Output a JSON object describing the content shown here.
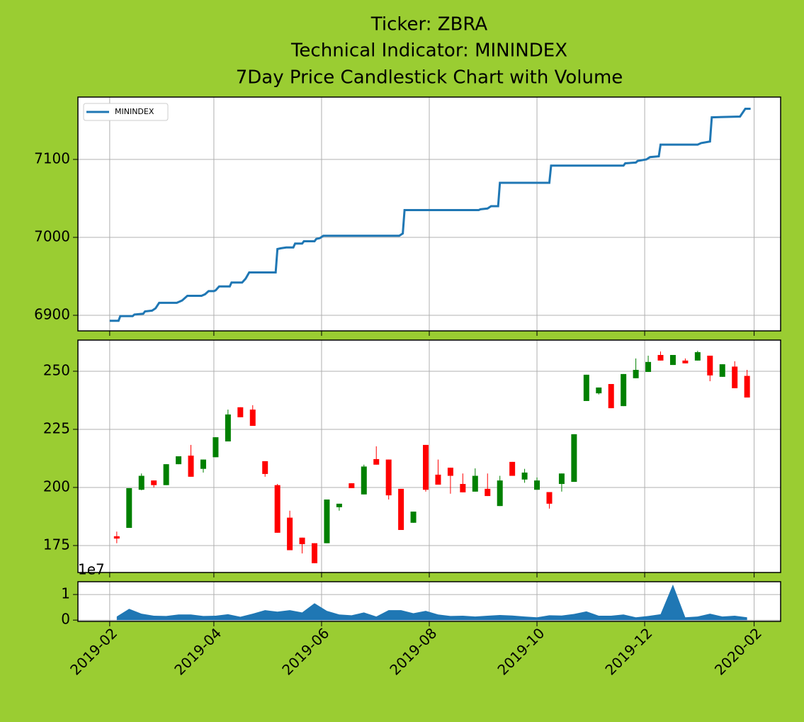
{
  "title": [
    "Ticker: ZBRA",
    "Technical Indicator: MININDEX",
    "7Day Price Candlestick Chart with Volume"
  ],
  "x_axis": {
    "xlim": [
      "2019-01-14",
      "2020-02-16"
    ],
    "xticks": [
      "2019-02",
      "2019-04",
      "2019-06",
      "2019-08",
      "2019-10",
      "2019-12",
      "2020-02"
    ]
  },
  "chart_data": [
    {
      "type": "line",
      "legend": "upper left",
      "grid": true,
      "x": [
        "2019-02-01",
        "2019-02-06",
        "2019-02-07",
        "2019-02-14",
        "2019-02-15",
        "2019-02-20",
        "2019-02-21",
        "2019-02-25",
        "2019-02-27",
        "2019-03-01",
        "2019-03-11",
        "2019-03-14",
        "2019-03-17",
        "2019-03-25",
        "2019-03-27",
        "2019-03-29",
        "2019-04-01",
        "2019-04-02",
        "2019-04-04",
        "2019-04-10",
        "2019-04-11",
        "2019-04-17",
        "2019-04-19",
        "2019-04-21",
        "2019-05-06",
        "2019-05-07",
        "2019-05-09",
        "2019-05-12",
        "2019-05-16",
        "2019-05-17",
        "2019-05-21",
        "2019-05-22",
        "2019-05-28",
        "2019-05-29",
        "2019-05-31",
        "2019-06-02",
        "2019-07-15",
        "2019-07-17",
        "2019-07-18",
        "2019-08-29",
        "2019-08-30",
        "2019-09-03",
        "2019-09-05",
        "2019-09-09",
        "2019-09-10",
        "2019-10-08",
        "2019-10-09",
        "2019-11-19",
        "2019-11-20",
        "2019-11-26",
        "2019-11-27",
        "2019-12-02",
        "2019-12-04",
        "2019-12-09",
        "2019-12-10",
        "2019-12-31",
        "2020-01-02",
        "2020-01-07",
        "2020-01-08",
        "2020-01-24",
        "2020-01-27",
        "2020-01-30"
      ],
      "series": [
        {
          "name": "MININDEX",
          "color": "#1f77b4",
          "values": [
            6893,
            6893,
            6899,
            6899,
            6901,
            6902,
            6905,
            6906,
            6909,
            6916,
            6916,
            6919,
            6925,
            6925,
            6927,
            6931,
            6931,
            6932,
            6937,
            6937,
            6942,
            6942,
            6947,
            6955,
            6955,
            6985,
            6986,
            6987,
            6987,
            6992,
            6992,
            6995,
            6995,
            6998,
            6999,
            7002,
            7002,
            7005,
            7035,
            7035,
            7036,
            7037,
            7040,
            7040,
            7070,
            7070,
            7092,
            7092,
            7095,
            7096,
            7098,
            7100,
            7103,
            7104,
            7119,
            7119,
            7121,
            7123,
            7154,
            7155,
            7165,
            7165
          ]
        }
      ],
      "ylim": [
        6880,
        7180
      ],
      "yticks": [
        6900,
        7000,
        7100
      ]
    },
    {
      "type": "candlestick",
      "grid": true,
      "up_color": "#008000",
      "down_color": "#ff0000",
      "x": [
        "2019-02-05",
        "2019-02-12",
        "2019-02-19",
        "2019-02-26",
        "2019-03-05",
        "2019-03-12",
        "2019-03-19",
        "2019-03-26",
        "2019-04-02",
        "2019-04-09",
        "2019-04-16",
        "2019-04-23",
        "2019-04-30",
        "2019-05-07",
        "2019-05-14",
        "2019-05-21",
        "2019-05-28",
        "2019-06-04",
        "2019-06-11",
        "2019-06-18",
        "2019-06-25",
        "2019-07-02",
        "2019-07-09",
        "2019-07-16",
        "2019-07-23",
        "2019-07-30",
        "2019-08-06",
        "2019-08-13",
        "2019-08-20",
        "2019-08-27",
        "2019-09-03",
        "2019-09-10",
        "2019-09-17",
        "2019-09-24",
        "2019-10-01",
        "2019-10-08",
        "2019-10-15",
        "2019-10-22",
        "2019-10-29",
        "2019-11-05",
        "2019-11-12",
        "2019-11-19",
        "2019-11-26",
        "2019-12-03",
        "2019-12-10",
        "2019-12-17",
        "2019-12-24",
        "2019-12-31",
        "2020-01-07",
        "2020-01-14",
        "2020-01-21",
        "2020-01-28"
      ],
      "open": [
        179,
        182.6,
        199,
        203,
        201,
        210,
        213.7,
        208,
        213,
        219.8,
        234.5,
        233.5,
        211.3,
        201,
        187,
        178.4,
        176,
        176,
        191.5,
        201.8,
        197,
        212.2,
        212,
        199.4,
        184.8,
        218.3,
        205.5,
        208.5,
        201.5,
        198.2,
        199.4,
        192,
        211,
        203.4,
        199,
        198,
        201.5,
        202.4,
        237.2,
        240.5,
        244.5,
        235,
        247,
        249.7,
        257,
        252.7,
        254.6,
        254.6,
        256.7,
        247.6,
        252,
        248
      ],
      "high": [
        181,
        199.7,
        206,
        203,
        210,
        213.4,
        218.3,
        212,
        221.6,
        233.5,
        234.5,
        235.4,
        211.3,
        201.5,
        190,
        178.4,
        176,
        194.8,
        193,
        201.8,
        209.8,
        217.7,
        212,
        199.4,
        189.6,
        218.3,
        212,
        208.5,
        206,
        208.2,
        206,
        205,
        211,
        208,
        204.3,
        198,
        206,
        222.9,
        248.5,
        243,
        244.5,
        248.8,
        255.5,
        256.7,
        258.5,
        257,
        255.5,
        258.8,
        256.7,
        253,
        254.3,
        250.6
      ],
      "low": [
        176,
        182.6,
        198.8,
        200,
        201,
        210,
        204.6,
        206.4,
        213,
        219.8,
        230.2,
        226.5,
        204.6,
        180.5,
        173,
        171.6,
        167.4,
        176,
        190,
        199.7,
        197,
        209.8,
        194.8,
        181.7,
        184.8,
        198.2,
        201.2,
        197.3,
        197.9,
        198.2,
        196.3,
        192,
        205,
        202,
        199,
        190.9,
        198.2,
        202.4,
        237.2,
        240,
        234.1,
        235,
        247,
        249.7,
        254.6,
        252.7,
        253.4,
        254.6,
        245.7,
        247.6,
        242.7,
        238.7
      ],
      "close": [
        178,
        199.7,
        205,
        201,
        210,
        213.4,
        204.6,
        212,
        221.6,
        231.4,
        230.2,
        226.5,
        205.8,
        180.5,
        173,
        175.6,
        167.4,
        194.8,
        193,
        199.7,
        209,
        209.8,
        196.6,
        181.7,
        189.6,
        199,
        201.2,
        205,
        197.9,
        205,
        196.3,
        203,
        205,
        206.4,
        203,
        193,
        206,
        222.9,
        248.5,
        243,
        234.1,
        248.8,
        250.6,
        254,
        254.6,
        257,
        253.4,
        258.2,
        248.2,
        253,
        242.7,
        238.7
      ],
      "ylim": [
        163.4,
        263.4
      ],
      "yticks": [
        175,
        200,
        225,
        250
      ]
    },
    {
      "type": "area",
      "grid": true,
      "color": "#1f77b4",
      "y_offset_label": "1e7",
      "x": [
        "2019-02-05",
        "2019-02-12",
        "2019-02-19",
        "2019-02-26",
        "2019-03-05",
        "2019-03-12",
        "2019-03-19",
        "2019-03-26",
        "2019-04-02",
        "2019-04-09",
        "2019-04-16",
        "2019-04-23",
        "2019-04-30",
        "2019-05-07",
        "2019-05-14",
        "2019-05-21",
        "2019-05-28",
        "2019-06-04",
        "2019-06-11",
        "2019-06-18",
        "2019-06-25",
        "2019-07-02",
        "2019-07-09",
        "2019-07-16",
        "2019-07-23",
        "2019-07-30",
        "2019-08-06",
        "2019-08-13",
        "2019-08-20",
        "2019-08-27",
        "2019-09-03",
        "2019-09-10",
        "2019-09-17",
        "2019-09-24",
        "2019-10-01",
        "2019-10-08",
        "2019-10-15",
        "2019-10-22",
        "2019-10-29",
        "2019-11-05",
        "2019-11-12",
        "2019-11-19",
        "2019-11-26",
        "2019-12-03",
        "2019-12-10",
        "2019-12-17",
        "2019-12-24",
        "2019-12-31",
        "2020-01-07",
        "2020-01-14",
        "2020-01-21",
        "2020-01-28"
      ],
      "values": [
        1400000,
        4400000,
        2500000,
        1700000,
        1600000,
        2200000,
        2200000,
        1600000,
        1700000,
        2300000,
        1300000,
        2500000,
        3900000,
        3300000,
        3900000,
        3000000,
        6600000,
        3600000,
        2200000,
        1900000,
        3000000,
        1400000,
        3900000,
        3900000,
        2700000,
        3600000,
        2200000,
        1600000,
        1700000,
        1400000,
        1700000,
        2000000,
        1800000,
        1400000,
        1100000,
        1900000,
        1800000,
        2400000,
        3400000,
        1700000,
        1700000,
        2200000,
        1100000,
        1600000,
        2300000,
        13900000,
        1100000,
        1400000,
        2500000,
        1400000,
        1700000,
        1100000
      ],
      "ylim": [
        -500000,
        15000000
      ],
      "yticks": [
        0,
        {
          "value": 10000000,
          "label": "1"
        }
      ]
    }
  ]
}
